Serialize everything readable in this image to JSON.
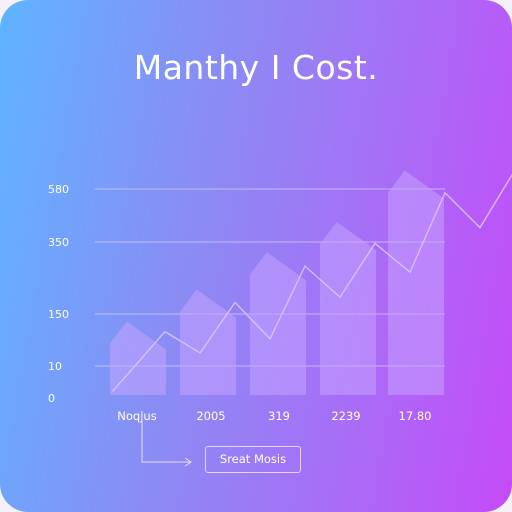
{
  "chart_data": {
    "type": "area",
    "title": "Manthy I Cost.",
    "xlabel": "",
    "ylabel": "",
    "ylim": [
      0,
      580
    ],
    "grid": true,
    "y_tick_labels": [
      "0",
      "10",
      "150",
      "350",
      "580"
    ],
    "categories": [
      "Noqjus",
      "2005",
      "319",
      "2239",
      "17.80"
    ],
    "series": [
      {
        "values": [
          145,
          235,
          340,
          425,
          570
        ]
      }
    ],
    "line": {
      "x": [
        0.25,
        1.0,
        1.5,
        2.0,
        2.5,
        3.0,
        3.5,
        4.0,
        4.5,
        5.0,
        5.5,
        6.0,
        6.5
      ],
      "y": [
        10,
        178,
        118,
        260,
        158,
        362,
        275,
        426,
        345,
        568,
        470,
        632,
        540
      ]
    },
    "colors": {
      "fill": "#c4a2ff",
      "line": "#d8c6ff",
      "grid": "#d4ccff"
    },
    "legend": {
      "label": "Sreat Mosis",
      "placement": "bottom-center"
    }
  }
}
